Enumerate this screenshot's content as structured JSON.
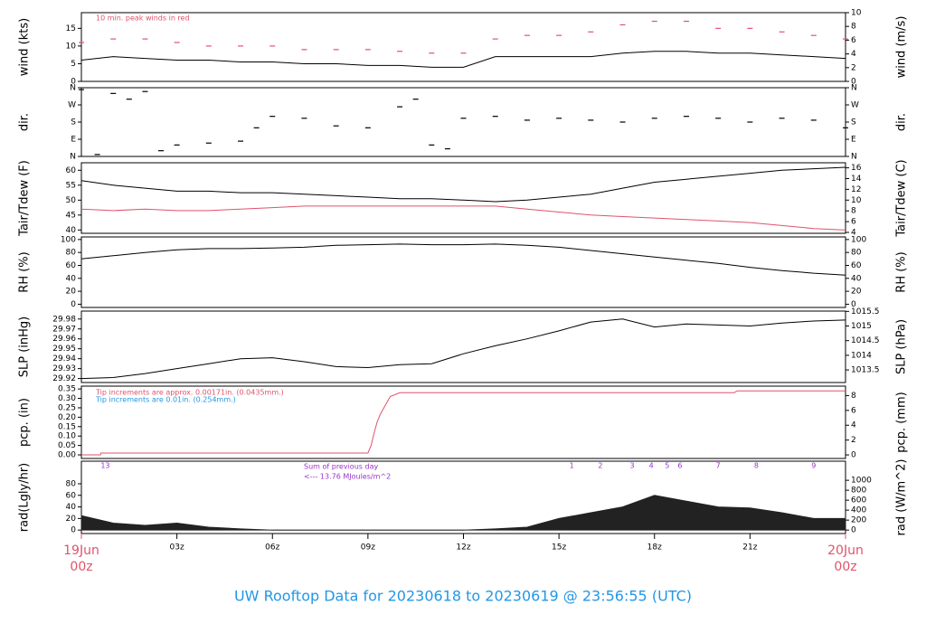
{
  "title": "UW Rooftop Data for 20230618  to  20230619 @ 23:56:55  (UTC)",
  "chart_data": [
    {
      "type": "line",
      "ylabel": "wind (kts)",
      "y2label": "wind (m/s)",
      "xlim": [
        0,
        24
      ],
      "ylim": [
        0,
        19.44
      ],
      "yticks": [
        0,
        5,
        10,
        15
      ],
      "y2lim": [
        0,
        10
      ],
      "y2ticks": [
        0,
        2,
        4,
        6,
        8,
        10
      ],
      "notes": [
        {
          "text": "10 min. peak winds in red",
          "color": "#df536b"
        }
      ],
      "x": [
        0,
        1,
        2,
        3,
        4,
        5,
        6,
        7,
        8,
        9,
        10,
        11,
        12,
        13,
        14,
        15,
        16,
        17,
        18,
        19,
        20,
        21,
        22,
        23,
        24
      ],
      "series": [
        {
          "name": "wind",
          "color": "#000000",
          "values": [
            6,
            7,
            6.5,
            6,
            6,
            5.5,
            5.5,
            5,
            5,
            4.5,
            4.5,
            4,
            4,
            7,
            7,
            7,
            7,
            8,
            8.5,
            8.5,
            8,
            8,
            7.5,
            7,
            6.5
          ]
        },
        {
          "name": "peak",
          "color": "#df536b",
          "marker": "dash",
          "values": [
            11,
            12,
            12,
            11,
            10,
            10,
            10,
            9,
            9,
            9,
            8.5,
            8,
            8,
            12,
            13,
            13,
            14,
            16,
            17,
            17,
            15,
            15,
            14,
            13,
            12
          ]
        }
      ]
    },
    {
      "type": "scatter",
      "ylabel": "dir.",
      "y2label": "dir.",
      "xlim": [
        0,
        24
      ],
      "ylim": [
        0,
        360
      ],
      "yticks": [
        {
          "value": 0,
          "label": "N"
        },
        {
          "value": 90,
          "label": "E"
        },
        {
          "value": 180,
          "label": "S"
        },
        {
          "value": 270,
          "label": "W"
        },
        {
          "value": 360,
          "label": "N"
        }
      ],
      "y2lim": [
        0,
        360
      ],
      "y2ticks": [
        {
          "value": 0,
          "label": "N"
        },
        {
          "value": 90,
          "label": "E"
        },
        {
          "value": 180,
          "label": "S"
        },
        {
          "value": 270,
          "label": "W"
        },
        {
          "value": 360,
          "label": "N"
        }
      ],
      "x": [
        0,
        0.5,
        1,
        1.5,
        2,
        2.5,
        3,
        4,
        5,
        5.5,
        6,
        7,
        8,
        9,
        10,
        10.5,
        11,
        11.5,
        12,
        13,
        14,
        15,
        16,
        17,
        18,
        19,
        20,
        21,
        22,
        23,
        24
      ],
      "series": [
        {
          "name": "dir",
          "color": "#000000",
          "marker": "dash",
          "values": [
            350,
            10,
            330,
            300,
            340,
            30,
            60,
            70,
            80,
            150,
            210,
            200,
            160,
            150,
            260,
            300,
            60,
            40,
            200,
            210,
            190,
            200,
            190,
            180,
            200,
            210,
            200,
            180,
            200,
            190,
            150
          ]
        }
      ]
    },
    {
      "type": "line",
      "ylabel": "Tair/Tdew (F)",
      "y2label": "Tair/Tdew (C)",
      "xlim": [
        0,
        24
      ],
      "ylim": [
        38.9,
        62.5
      ],
      "yticks": [
        40,
        45,
        50,
        55,
        60
      ],
      "y2lim": [
        3.83,
        16.94
      ],
      "y2ticks": [
        4,
        6,
        8,
        10,
        12,
        14,
        16
      ],
      "x": [
        0,
        1,
        2,
        3,
        4,
        5,
        6,
        7,
        8,
        9,
        10,
        11,
        12,
        13,
        14,
        15,
        16,
        17,
        18,
        19,
        20,
        21,
        22,
        23,
        24
      ],
      "series": [
        {
          "name": "Tair",
          "color": "#000000",
          "values": [
            56.5,
            55,
            54,
            53,
            53,
            52.5,
            52.5,
            52,
            51.5,
            51,
            50.5,
            50.5,
            50,
            49.5,
            50,
            51,
            52,
            54,
            56,
            57,
            58,
            59,
            60,
            60.5,
            61
          ]
        },
        {
          "name": "Tdew",
          "color": "#df536b",
          "values": [
            47,
            46.5,
            47,
            46.5,
            46.5,
            47,
            47.5,
            48,
            48,
            48,
            48,
            48,
            48,
            48,
            47,
            46,
            45,
            44.5,
            44,
            43.5,
            43,
            42.5,
            41.5,
            40.5,
            40
          ]
        }
      ]
    },
    {
      "type": "line",
      "ylabel": "RH (%)",
      "y2label": "RH (%)",
      "xlim": [
        0,
        24
      ],
      "ylim": [
        -5,
        104
      ],
      "yticks": [
        0,
        20,
        40,
        60,
        80,
        100
      ],
      "y2lim": [
        -5,
        104
      ],
      "y2ticks": [
        0,
        20,
        40,
        60,
        80,
        100
      ],
      "x": [
        0,
        1,
        2,
        3,
        4,
        5,
        6,
        7,
        8,
        9,
        10,
        11,
        12,
        13,
        14,
        15,
        16,
        17,
        18,
        19,
        20,
        21,
        22,
        23,
        24
      ],
      "series": [
        {
          "name": "RH",
          "color": "#000000",
          "values": [
            70,
            75,
            80,
            84,
            86,
            86,
            87,
            88,
            91,
            92,
            93,
            92,
            92,
            93,
            91,
            88,
            83,
            78,
            73,
            68,
            63,
            57,
            52,
            48,
            45
          ]
        }
      ]
    },
    {
      "type": "line",
      "ylabel": "SLP (inHg)",
      "y2label": "SLP (hPa)",
      "xlim": [
        0,
        24
      ],
      "ylim": [
        29.916,
        29.988
      ],
      "yticks": [
        29.92,
        29.93,
        29.94,
        29.95,
        29.96,
        29.97,
        29.98
      ],
      "y2lim": [
        1013.07,
        1015.51
      ],
      "y2ticks": [
        1013.5,
        1014,
        1014.5,
        1015,
        1015.5
      ],
      "x": [
        0,
        1,
        2,
        3,
        4,
        5,
        6,
        7,
        8,
        9,
        10,
        11,
        12,
        13,
        14,
        15,
        16,
        17,
        18,
        19,
        20,
        21,
        22,
        23,
        24
      ],
      "series": [
        {
          "name": "SLP",
          "color": "#000000",
          "values": [
            29.92,
            29.921,
            29.925,
            29.93,
            29.935,
            29.94,
            29.941,
            29.937,
            29.932,
            29.931,
            29.934,
            29.935,
            29.945,
            29.953,
            29.96,
            29.968,
            29.977,
            29.98,
            29.972,
            29.975,
            29.974,
            29.973,
            29.976,
            29.978,
            29.979
          ]
        }
      ]
    },
    {
      "type": "line",
      "ylabel": "pcp. (in)",
      "y2label": "pcp. (mm)",
      "xlim": [
        0,
        24
      ],
      "ylim": [
        -0.019,
        0.365
      ],
      "yticks": [
        {
          "value": 0,
          "label": "0.00"
        },
        {
          "value": 0.05,
          "label": "0.05"
        },
        {
          "value": 0.1,
          "label": "0.10"
        },
        {
          "value": 0.15,
          "label": "0.15"
        },
        {
          "value": 0.2,
          "label": "0.20"
        },
        {
          "value": 0.25,
          "label": "0.25"
        },
        {
          "value": 0.3,
          "label": "0.30"
        },
        {
          "value": 0.35,
          "label": "0.35"
        }
      ],
      "y2lim": [
        -0.48,
        9.27
      ],
      "y2ticks": [
        0,
        2,
        4,
        6,
        8
      ],
      "notes": [
        {
          "text": "Tip increments are approx. 0.00171in. (0.0435mm.)",
          "color": "#df536b"
        },
        {
          "text": "Tip increments are 0.01in. (0.254mm.)",
          "color": "#2297e6"
        }
      ],
      "x": [
        0,
        0.6,
        0.61,
        9,
        9.1,
        9.2,
        9.3,
        9.4,
        9.5,
        9.7,
        10,
        20.5,
        20.6,
        24
      ],
      "series": [
        {
          "name": "pcp",
          "color": "#df536b",
          "values": [
            0,
            0,
            0.01,
            0.01,
            0.05,
            0.12,
            0.18,
            0.22,
            0.25,
            0.31,
            0.33,
            0.33,
            0.34,
            0.34
          ]
        }
      ]
    },
    {
      "type": "area",
      "ylabel": "rad(Lgly/hr)",
      "y2label": "rad (W/m^2)",
      "xlim": [
        0,
        24
      ],
      "ylim": [
        -6,
        119
      ],
      "yticks": [
        0,
        20,
        40,
        60,
        80
      ],
      "y2lim": [
        -70,
        1384
      ],
      "y2ticks": [
        0,
        200,
        400,
        600,
        800,
        1000
      ],
      "notes": [
        {
          "text": "Sum of previous day",
          "color": "#9933cc"
        },
        {
          "text": "<--- 13.76 MJoules/m^2",
          "color": "#9933cc"
        }
      ],
      "markers": [
        "13",
        "1",
        "2",
        "3",
        "4",
        "5",
        "6",
        "7",
        "8",
        "9"
      ],
      "xticks": [
        {
          "value": 0,
          "label": "19Jun"
        },
        {
          "value": 3,
          "label": "03z"
        },
        {
          "value": 6,
          "label": "06z"
        },
        {
          "value": 9,
          "label": "09z"
        },
        {
          "value": 12,
          "label": "12z"
        },
        {
          "value": 15,
          "label": "15z"
        },
        {
          "value": 18,
          "label": "18z"
        },
        {
          "value": 21,
          "label": "21z"
        },
        {
          "value": 24,
          "label": "20Jun"
        }
      ],
      "x_end_label": "00z",
      "x": [
        0,
        1,
        2,
        3,
        4,
        5,
        6,
        7,
        8,
        9,
        10,
        11,
        12,
        13,
        14,
        15,
        16,
        17,
        18,
        19,
        20,
        21,
        22,
        23,
        24
      ],
      "series": [
        {
          "name": "rad",
          "color": "#222222",
          "values": [
            25,
            12,
            8,
            12,
            5,
            2,
            0,
            0,
            0,
            0,
            0,
            0,
            0,
            2,
            5,
            20,
            30,
            40,
            60,
            50,
            40,
            38,
            30,
            20,
            20
          ]
        }
      ]
    }
  ]
}
